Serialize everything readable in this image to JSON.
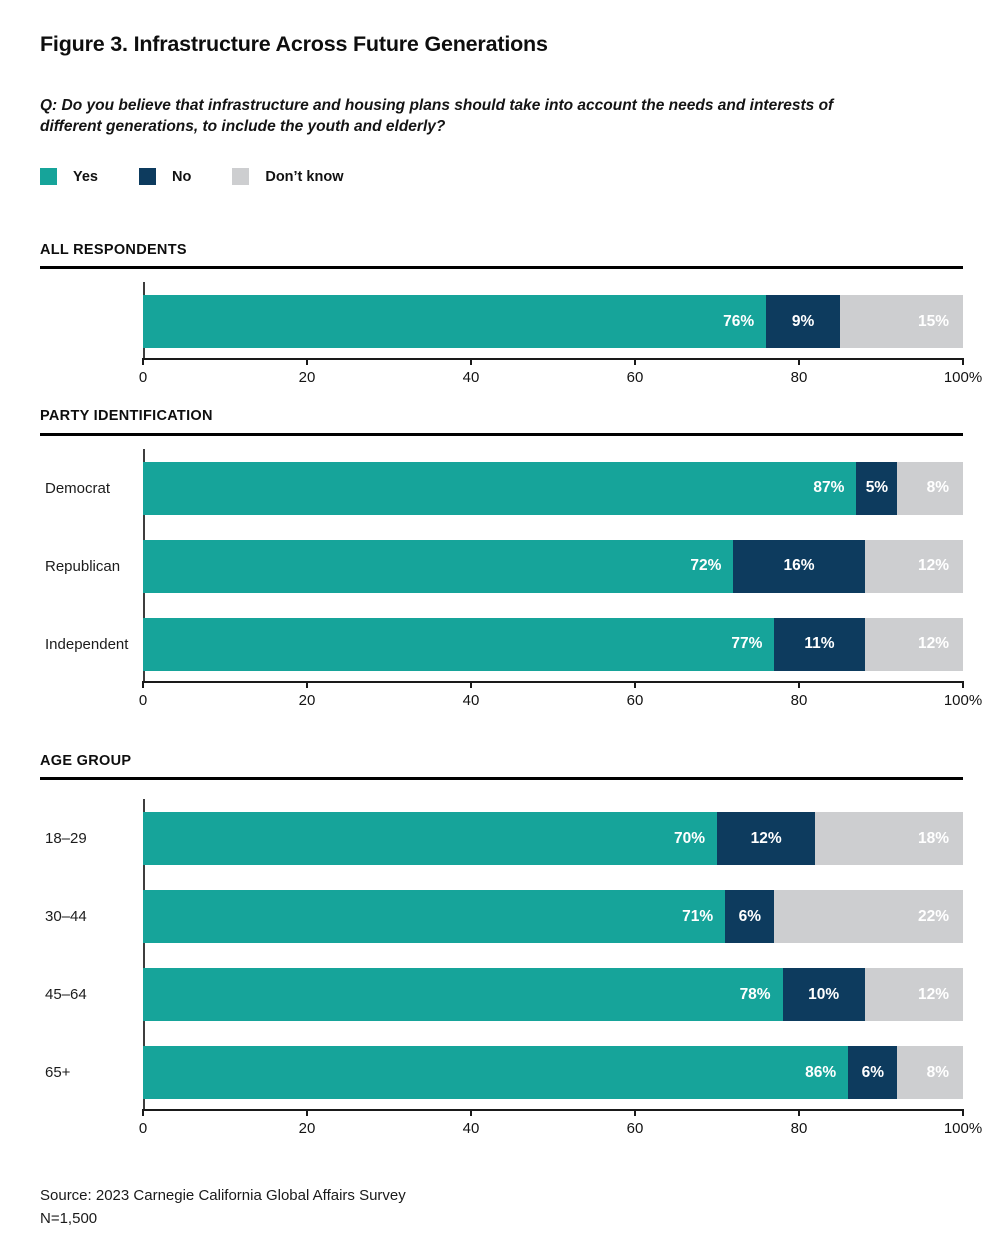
{
  "page": {
    "title": "Figure 3. Infrastructure Across Future Generations",
    "question": "Q: Do you believe that infrastructure and housing plans should take into account the needs and interests of different generations, to include the youth and elderly?",
    "source_line1": "Source: 2023 Carnegie California Global Affairs Survey",
    "source_line2": "N=1,500"
  },
  "legend": {
    "items": [
      {
        "label": "Yes",
        "color": "#16a49a"
      },
      {
        "label": "No",
        "color": "#0d3b5e"
      },
      {
        "label": "Don’t know",
        "color": "#cdced0"
      }
    ]
  },
  "axis": {
    "range": [
      0,
      100
    ],
    "tick_labels": [
      "0",
      "20",
      "40",
      "60",
      "80",
      "100%"
    ]
  },
  "colors": {
    "yes": "#16a49a",
    "no": "#0d3b5e",
    "dont_know": "#cdced0",
    "bar_value_label": "#ffffff",
    "section_rule": "#000000",
    "axis_line": "#1a1a1a"
  },
  "chart_data": [
    {
      "type": "bar",
      "orientation": "horizontal",
      "stacked": true,
      "section": "ALL RESPONDENTS",
      "categories": [
        ""
      ],
      "series": [
        {
          "name": "Yes",
          "color": "#16a49a",
          "values": [
            76
          ]
        },
        {
          "name": "No",
          "color": "#0d3b5e",
          "values": [
            9
          ]
        },
        {
          "name": "Don’t know",
          "color": "#cdced0",
          "values": [
            15
          ]
        }
      ],
      "xlim": [
        0,
        100
      ],
      "value_label_format": "{v}%"
    },
    {
      "type": "bar",
      "orientation": "horizontal",
      "stacked": true,
      "section": "PARTY IDENTIFICATION",
      "categories": [
        "Democrat",
        "Republican",
        "Independent"
      ],
      "series": [
        {
          "name": "Yes",
          "color": "#16a49a",
          "values": [
            87,
            72,
            77
          ]
        },
        {
          "name": "No",
          "color": "#0d3b5e",
          "values": [
            5,
            16,
            11
          ]
        },
        {
          "name": "Don’t know",
          "color": "#cdced0",
          "values": [
            8,
            12,
            12
          ]
        }
      ],
      "xlim": [
        0,
        100
      ],
      "value_label_format": "{v}%"
    },
    {
      "type": "bar",
      "orientation": "horizontal",
      "stacked": true,
      "section": "AGE GROUP",
      "categories": [
        "18–29",
        "30–44",
        "45–64",
        "65+"
      ],
      "series": [
        {
          "name": "Yes",
          "color": "#16a49a",
          "values": [
            70,
            71,
            78,
            86
          ]
        },
        {
          "name": "No",
          "color": "#0d3b5e",
          "values": [
            12,
            6,
            10,
            6
          ]
        },
        {
          "name": "Don’t know",
          "color": "#cdced0",
          "values": [
            18,
            22,
            12,
            8
          ]
        }
      ],
      "xlim": [
        0,
        100
      ],
      "value_label_format": "{v}%"
    }
  ]
}
